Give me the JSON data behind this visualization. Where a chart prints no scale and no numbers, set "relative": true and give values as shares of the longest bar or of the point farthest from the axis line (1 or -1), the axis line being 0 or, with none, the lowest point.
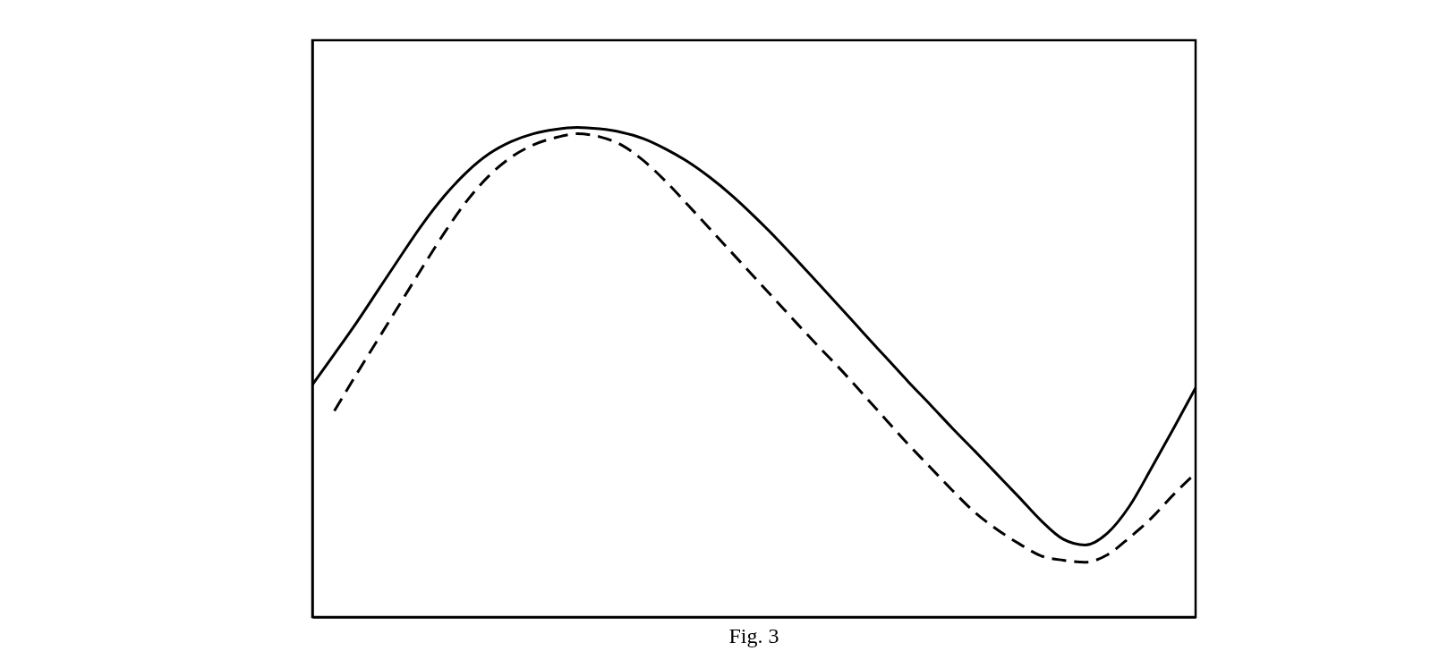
{
  "chart_data": {
    "type": "line",
    "relative": true,
    "annotations": [
      "Fig. 3"
    ],
    "categories": [
      null,
      null,
      null,
      null,
      null,
      null,
      null,
      null,
      null,
      null,
      null,
      null,
      null,
      null,
      null,
      null,
      null,
      null,
      null,
      null,
      null,
      null,
      null,
      null,
      null,
      null,
      null,
      null,
      null,
      null,
      null,
      null,
      null,
      null,
      null,
      null,
      null,
      null,
      null,
      null,
      null
    ],
    "series": [
      {
        "color": "#000000",
        "line_style": "solid",
        "values": [
          0.474,
          0.537,
          0.601,
          0.669,
          0.737,
          0.803,
          0.861,
          0.909,
          0.946,
          0.971,
          0.987,
          0.996,
          1.0,
          0.997,
          0.99,
          0.977,
          0.956,
          0.93,
          0.898,
          0.861,
          0.819,
          0.774,
          0.726,
          0.677,
          0.628,
          0.578,
          0.529,
          0.48,
          0.433,
          0.385,
          0.339,
          0.292,
          0.245,
          0.197,
          0.159,
          0.147,
          0.171,
          0.226,
          0.304,
          0.385,
          0.468
        ]
      },
      {
        "color": "#000000",
        "line_style": "dashed",
        "values": [
          null,
          0.421,
          0.496,
          0.569,
          0.642,
          0.715,
          0.786,
          0.85,
          0.901,
          0.939,
          0.964,
          0.979,
          0.987,
          0.981,
          0.964,
          0.932,
          0.89,
          0.842,
          0.793,
          0.744,
          0.695,
          0.646,
          0.597,
          0.549,
          0.502,
          0.452,
          0.402,
          0.352,
          0.305,
          0.258,
          0.214,
          0.179,
          0.15,
          0.125,
          0.116,
          0.112,
          0.127,
          0.162,
          0.202,
          0.25,
          0.294
        ]
      }
    ]
  }
}
